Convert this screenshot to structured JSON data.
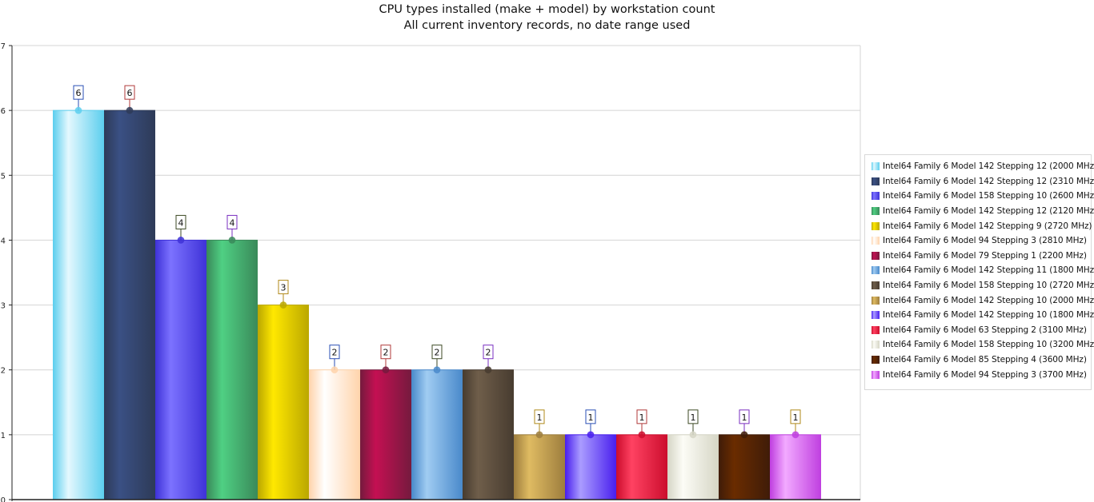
{
  "chart_data": {
    "type": "bar",
    "title": "CPU types installed (make + model) by workstation count",
    "subtitle": "All current inventory records, no date range used",
    "xlabel": "",
    "ylabel": "",
    "ylim": [
      0,
      7
    ],
    "yticks": [
      "0",
      "1",
      "2",
      "3",
      "4",
      "5",
      "6",
      "7"
    ],
    "grid": true,
    "legend_position": "right",
    "label_border_colors": [
      "#2a4fb5",
      "#b03a3a",
      "#3c4a24",
      "#7a2fc0",
      "#b08a1a"
    ],
    "series": [
      {
        "name": "Intel64 Family 6 Model 142 Stepping 12 (2000 MHz)",
        "value": 6,
        "color": "#5ecfee",
        "light": "#e4f8fe"
      },
      {
        "name": "Intel64 Family 6 Model 142 Stepping 12 (2310 MHz)",
        "value": 6,
        "color": "#2e3b58",
        "light": "#3a5084"
      },
      {
        "name": "Intel64 Family 6 Model 158 Stepping 10 (2600 MHz)",
        "value": 4,
        "color": "#3f33d8",
        "light": "#7c72ff"
      },
      {
        "name": "Intel64 Family 6 Model 142 Stepping 12 (2120 MHz)",
        "value": 4,
        "color": "#3a8a5a",
        "light": "#4fd083"
      },
      {
        "name": "Intel64 Family 6 Model 142 Stepping 9 (2720 MHz)",
        "value": 3,
        "color": "#bba800",
        "light": "#ffe800"
      },
      {
        "name": "Intel64 Family 6 Model 94 Stepping 3 (2810 MHz)",
        "value": 2,
        "color": "#ffd4ac",
        "light": "#ffffff"
      },
      {
        "name": "Intel64 Family 6 Model 79 Stepping 1 (2200 MHz)",
        "value": 2,
        "color": "#761a3e",
        "light": "#c41052"
      },
      {
        "name": "Intel64 Family 6 Model 142 Stepping 11 (1800 MHz)",
        "value": 2,
        "color": "#4a8acb",
        "light": "#a0ccf2"
      },
      {
        "name": "Intel64 Family 6 Model 158 Stepping 10 (2720 MHz)",
        "value": 2,
        "color": "#483c30",
        "light": "#6f5e4a"
      },
      {
        "name": "Intel64 Family 6 Model 142 Stepping 10 (2000 MHz)",
        "value": 1,
        "color": "#9e7e3e",
        "light": "#dfbb62"
      },
      {
        "name": "Intel64 Family 6 Model 142 Stepping 10 (1800 MHz)",
        "value": 1,
        "color": "#4a20ee",
        "light": "#aa9cff"
      },
      {
        "name": "Intel64 Family 6 Model 63 Stepping 2 (3100 MHz)",
        "value": 1,
        "color": "#cc0e2e",
        "light": "#ff4262"
      },
      {
        "name": "Intel64 Family 6 Model 158 Stepping 10 (3200 MHz)",
        "value": 1,
        "color": "#d6d6c6",
        "light": "#fcfcf6"
      },
      {
        "name": "Intel64 Family 6 Model 85 Stepping 4 (3600 MHz)",
        "value": 1,
        "color": "#401c08",
        "light": "#6a2c00"
      },
      {
        "name": "Intel64 Family 6 Model 94 Stepping 3 (3700 MHz)",
        "value": 1,
        "color": "#c040e0",
        "light": "#f2aaff"
      }
    ]
  }
}
